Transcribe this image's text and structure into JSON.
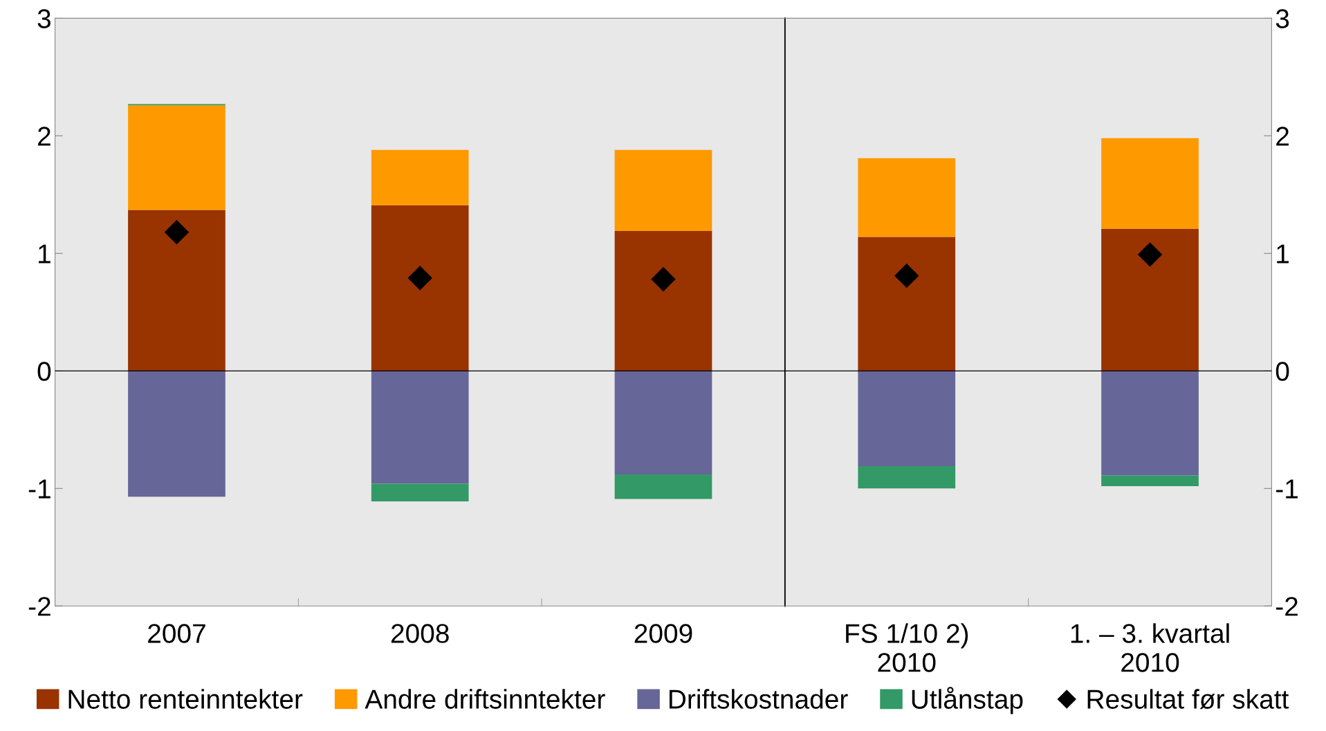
{
  "chart_data": [
    {
      "type": "bar",
      "stacked": true,
      "categories": [
        "2007",
        "2008",
        "2009"
      ],
      "series": [
        {
          "name": "Netto renteinntekter",
          "color": "#993300",
          "values": [
            1.37,
            1.41,
            1.19
          ]
        },
        {
          "name": "Andre driftsinntekter",
          "color": "#ff9900",
          "values": [
            0.89,
            0.47,
            0.69
          ]
        },
        {
          "name": "Driftskostnader",
          "color": "#666699",
          "values": [
            -1.07,
            -0.96,
            -0.88
          ]
        },
        {
          "name": "Utlånstap",
          "color": "#339966",
          "values": [
            0.01,
            -0.15,
            -0.21
          ]
        },
        {
          "name": "Resultat før skatt",
          "type": "scatter",
          "color": "#000000",
          "marker": "diamond",
          "values": [
            1.18,
            0.79,
            0.78
          ]
        }
      ],
      "ylim": [
        -2,
        3
      ],
      "yticks": [
        -2,
        -1,
        0,
        1,
        2,
        3
      ],
      "ref_lines": [
        {
          "axis": "y",
          "value": 0,
          "color": "#000000"
        }
      ],
      "grid": false,
      "legend": "bottom"
    },
    {
      "type": "bar",
      "stacked": true,
      "categories": [
        "FS 1/10 2)\n2010",
        "1. – 3. kvartal\n2010"
      ],
      "series": [
        {
          "color": "#993300",
          "values": [
            1.14,
            1.21
          ]
        },
        {
          "color": "#ff9900",
          "values": [
            0.67,
            0.77
          ]
        },
        {
          "color": "#666699",
          "values": [
            -0.81,
            -0.89
          ]
        },
        {
          "color": "#339966",
          "values": [
            -0.19,
            -0.09
          ]
        },
        {
          "type": "scatter",
          "color": "#000000",
          "marker": "diamond",
          "values": [
            0.81,
            0.99
          ]
        }
      ],
      "ylim": [
        -2,
        3
      ],
      "yticks": [
        -2,
        -1,
        0,
        1,
        2,
        3
      ],
      "ref_lines": [
        {
          "axis": "y",
          "value": 0,
          "color": "#000000"
        }
      ],
      "grid": false
    }
  ]
}
